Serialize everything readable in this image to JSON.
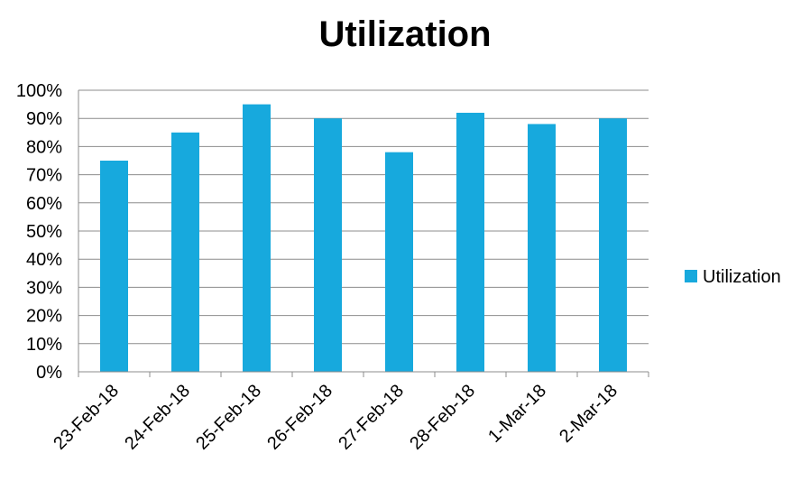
{
  "chart_data": {
    "type": "bar",
    "title": "Utilization",
    "xlabel": "",
    "ylabel": "",
    "categories": [
      "23-Feb-18",
      "24-Feb-18",
      "25-Feb-18",
      "26-Feb-18",
      "27-Feb-18",
      "28-Feb-18",
      "1-Mar-18",
      "2-Mar-18"
    ],
    "series": [
      {
        "name": "Utilization",
        "values": [
          0.75,
          0.85,
          0.95,
          0.9,
          0.78,
          0.92,
          0.88,
          0.9
        ],
        "color": "#17A9DD"
      }
    ],
    "ylim": [
      0,
      1
    ],
    "yticks": [
      "0%",
      "10%",
      "20%",
      "30%",
      "40%",
      "50%",
      "60%",
      "70%",
      "80%",
      "90%",
      "100%"
    ],
    "grid": true,
    "legend_position": "right",
    "gridline_color": "#8C8C8C"
  }
}
